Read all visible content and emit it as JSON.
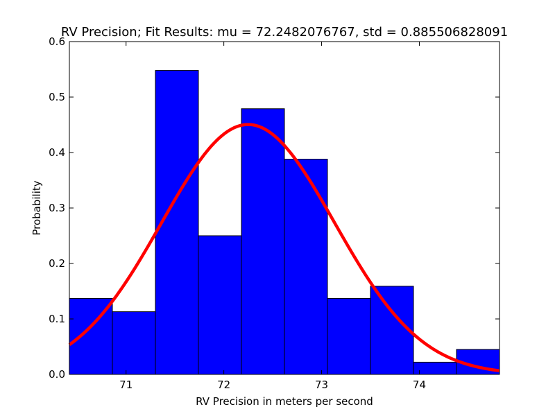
{
  "chart_data": {
    "type": "bar",
    "title": "RV Precision; Fit Results: mu = 72.2482076767, std = 0.885506828091",
    "xlabel": "RV Precision in meters per second",
    "ylabel": "Probability",
    "xlim": [
      70.42,
      74.82
    ],
    "ylim": [
      0,
      0.6
    ],
    "xticks": [
      71,
      72,
      73,
      74
    ],
    "xtick_labels": [
      "71",
      "72",
      "73",
      "74"
    ],
    "yticks": [
      0.0,
      0.1,
      0.2,
      0.3,
      0.4,
      0.5,
      0.6
    ],
    "ytick_labels": [
      "0.0",
      "0.1",
      "0.2",
      "0.3",
      "0.4",
      "0.5",
      "0.6"
    ],
    "grid": false,
    "histogram": {
      "bin_edges": [
        70.42,
        70.86,
        71.3,
        71.74,
        72.18,
        72.62,
        73.06,
        73.5,
        73.94,
        74.38,
        74.82
      ],
      "values": [
        0.137,
        0.113,
        0.548,
        0.25,
        0.479,
        0.388,
        0.137,
        0.159,
        0.022,
        0.045
      ],
      "color": "#0000ff"
    },
    "fit_curve": {
      "mu": 72.2482076767,
      "std": 0.885506828091,
      "color": "#ff0000"
    }
  }
}
